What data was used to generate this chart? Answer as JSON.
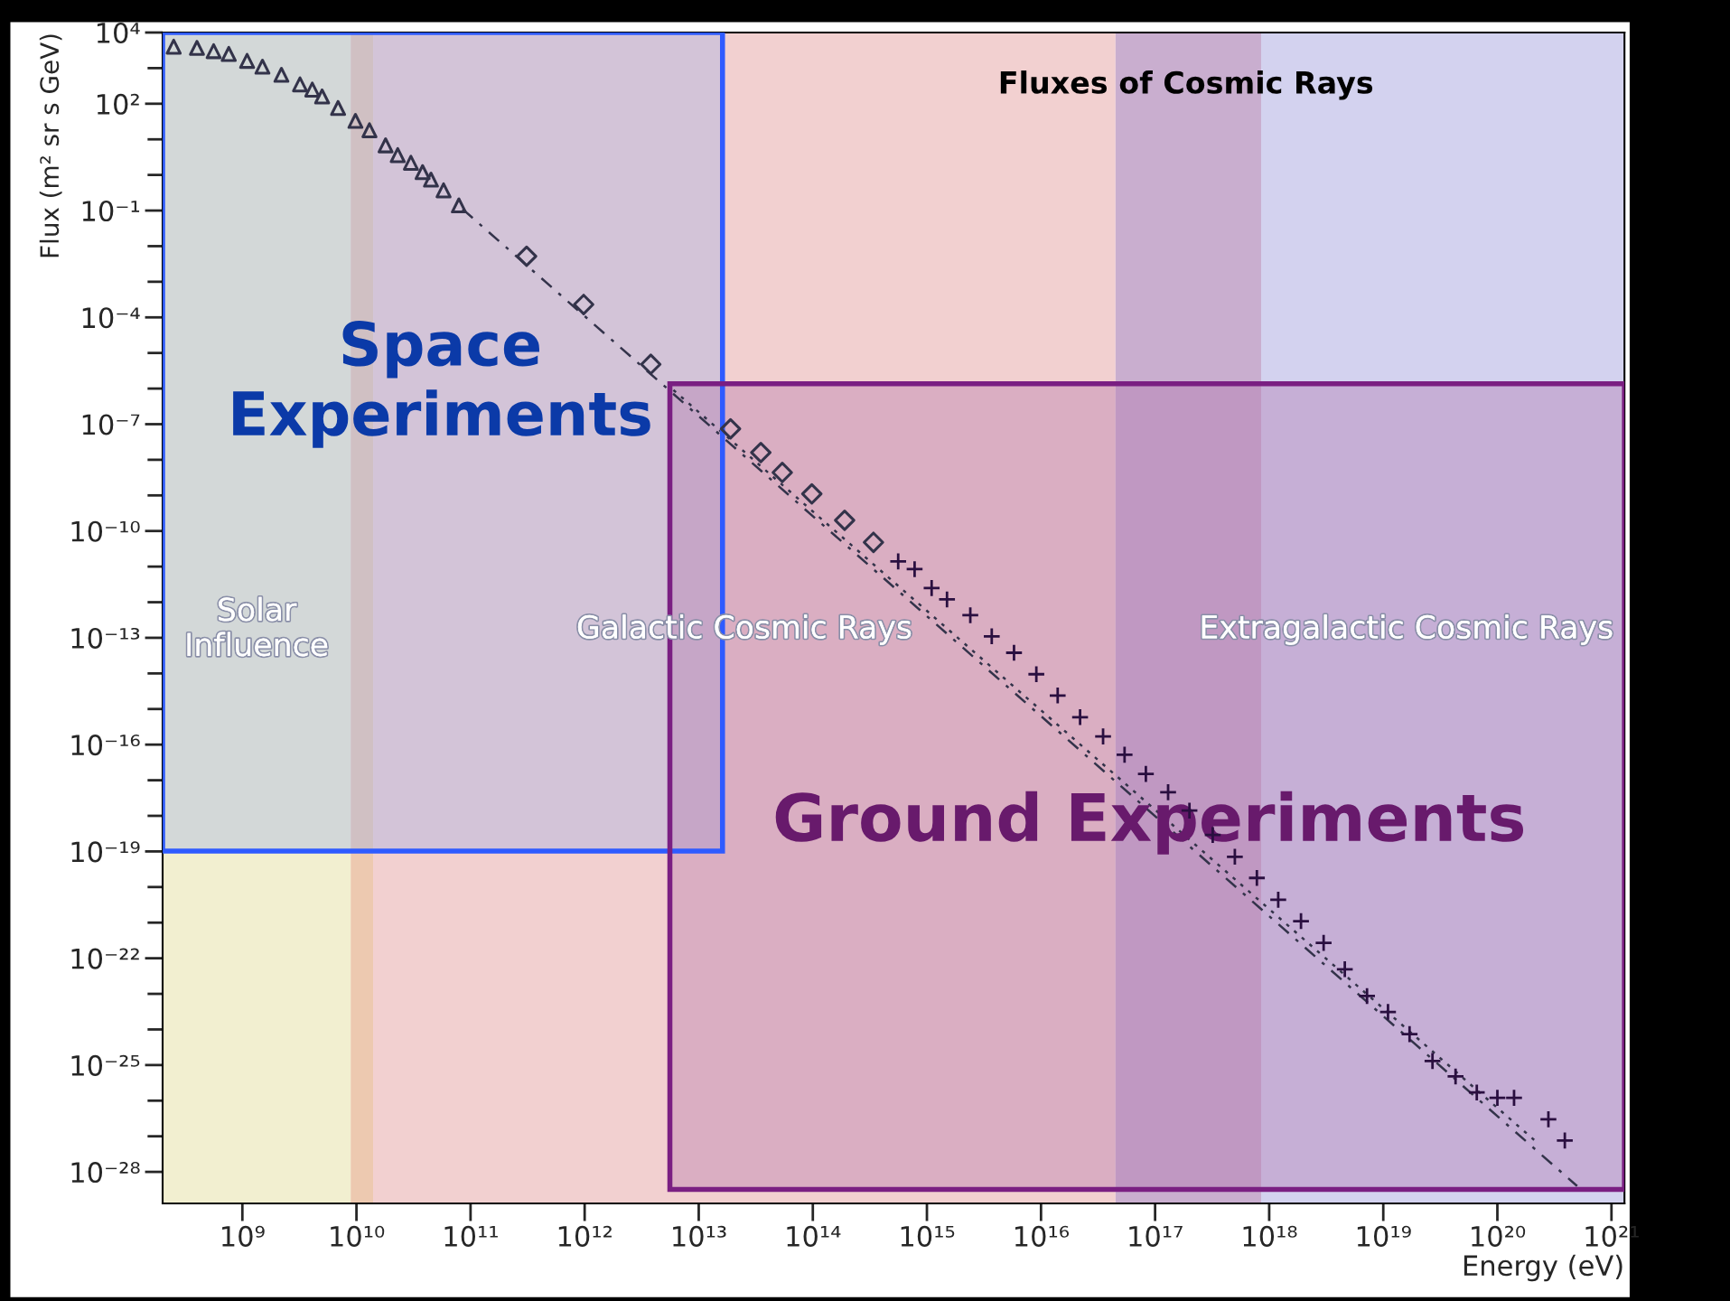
{
  "chart_data": {
    "type": "scatter",
    "xlabel": "Energy (eV)",
    "ylabel": "Flux (m² sr s GeV)",
    "log": "xy",
    "grid": false,
    "xlim": [
      200000000.0,
      1.3e+21
    ],
    "ylim": [
      1.3e-29,
      10000.0
    ],
    "xticks": [
      {
        "value": 1000000000.0,
        "label": "10⁹"
      },
      {
        "value": 10000000000.0,
        "label": "10¹⁰"
      },
      {
        "value": 100000000000.0,
        "label": "10¹¹"
      },
      {
        "value": 1000000000000.0,
        "label": "10¹²"
      },
      {
        "value": 10000000000000.0,
        "label": "10¹³"
      },
      {
        "value": 100000000000000.0,
        "label": "10¹⁴"
      },
      {
        "value": 1000000000000000.0,
        "label": "10¹⁵"
      },
      {
        "value": 1e+16,
        "label": "10¹⁶"
      },
      {
        "value": 1e+17,
        "label": "10¹⁷"
      },
      {
        "value": 1e+18,
        "label": "10¹⁸"
      },
      {
        "value": 1e+19,
        "label": "10¹⁹"
      },
      {
        "value": 1e+20,
        "label": "10²⁰"
      },
      {
        "value": 1e+21,
        "label": "10²¹"
      }
    ],
    "yticks": [
      {
        "value": 10000.0,
        "label": "10⁴"
      },
      {
        "value": 100.0,
        "label": "10²"
      },
      {
        "value": 0.1,
        "label": "10⁻¹"
      },
      {
        "value": 0.0001,
        "label": "10⁻⁴"
      },
      {
        "value": 1e-07,
        "label": "10⁻⁷"
      },
      {
        "value": 1e-10,
        "label": "10⁻¹⁰"
      },
      {
        "value": 1e-13,
        "label": "10⁻¹³"
      },
      {
        "value": 1e-16,
        "label": "10⁻¹⁶"
      },
      {
        "value": 1e-19,
        "label": "10⁻¹⁹"
      },
      {
        "value": 1e-22,
        "label": "10⁻²²"
      },
      {
        "value": 1e-25,
        "label": "10⁻²⁵"
      },
      {
        "value": 1e-28,
        "label": "10⁻²⁸"
      }
    ],
    "bands": [
      {
        "axis": "x",
        "from": 200000000.0,
        "to": 8900000000.0,
        "label": "Solar\nInfluence",
        "color": "#f2efd0"
      },
      {
        "axis": "x",
        "from": 8900000000.0,
        "to": 14000000000.0,
        "color": "#edc9b0"
      },
      {
        "axis": "x",
        "from": 14000000000.0,
        "to": 4.5e+16,
        "label": "Galactic Cosmic Rays",
        "color": "#f2d0d0"
      },
      {
        "axis": "x",
        "from": 4.5e+16,
        "to": 8.5e+17,
        "color": "#c9aecf"
      },
      {
        "axis": "x",
        "from": 8.5e+17,
        "to": 1.3e+21,
        "label": "Extragalactic Cosmic Rays",
        "color": "#d3d2ef"
      }
    ],
    "annotations": [
      "Fluxes of Cosmic Rays",
      "Space\nExperiments",
      "Ground Experiments"
    ],
    "series": [
      {
        "marker": "triangle",
        "color": "#33334a",
        "x": [
          250000000.0,
          400000000.0,
          560000000.0,
          760000000.0,
          1100000000.0,
          1500000000.0,
          2200000000.0,
          3200000000.0,
          4100000000.0,
          5000000000.0,
          6900000000.0,
          9800000000.0,
          13000000000.0,
          18000000000.0,
          23000000000.0,
          30000000000.0,
          38000000000.0,
          45000000000.0,
          58000000000.0,
          79000000000.0
        ],
        "values": [
          4000,
          3700,
          3000,
          2500,
          1600,
          1100,
          650,
          350,
          250,
          160,
          76,
          33,
          18,
          6.8,
          3.6,
          2.2,
          1.2,
          0.74,
          0.37,
          0.14
        ]
      },
      {
        "marker": "diamond",
        "color": "#33334a",
        "x": [
          310000000000.0,
          980000000000.0,
          3800000000000.0,
          19000000000000.0,
          35000000000000.0,
          54000000000000.0,
          98000000000000.0,
          190000000000000.0,
          340000000000000.0
        ],
        "values": [
          0.0052,
          0.00023,
          4.8e-06,
          7.4e-08,
          1.6e-08,
          4.4e-09,
          1.1e-09,
          2e-10,
          4.8e-11
        ]
      },
      {
        "marker": "cross",
        "color": "#2a0f40",
        "x": [
          560000000000000.0,
          780000000000000.0,
          1100000000000000.0,
          1500000000000000.0,
          2400000000000000.0,
          3700000000000000.0,
          5800000000000000.0,
          9100000000000000.0,
          1.4e+16,
          2.2e+16,
          3.5e+16,
          5.4e+16,
          8.3e+16,
          1.3e+17,
          2e+17,
          3.2e+17,
          5e+17,
          7.8e+17,
          1.2e+18,
          1.9e+18,
          3e+18,
          4.6e+18,
          7.2e+18,
          1.1e+19,
          1.7e+19,
          2.7e+19,
          4.3e+19,
          6.6e+19,
          1e+20,
          1.4e+20,
          2.8e+20,
          3.9e+20
        ],
        "values": [
          1.4e-11,
          8.5e-12,
          2.5e-12,
          1.2e-12,
          4.3e-13,
          1.1e-13,
          3.8e-14,
          9.5e-15,
          2.4e-15,
          5.9e-16,
          1.7e-16,
          5.2e-17,
          1.5e-17,
          4.6e-18,
          1.4e-18,
          2.9e-19,
          7.1e-20,
          1.8e-20,
          4.4e-21,
          1.1e-21,
          2.7e-22,
          4.9e-23,
          8.7e-24,
          3.1e-24,
          7.4e-25,
          1.3e-25,
          4.8e-26,
          1.7e-26,
          1.2e-26,
          1.2e-26,
          3e-27,
          7.6e-28
        ]
      },
      {
        "type": "line",
        "line_style": "dashed",
        "color": "#33334a",
        "x": [
          85000000000.0,
          5e+20
        ],
        "values": [
          0.11,
          4e-29
        ]
      },
      {
        "type": "line",
        "line_style": "dotted",
        "color": "#33334a",
        "x": [
          6000000000000.0,
          2.1e+20
        ],
        "values": [
          9.1e-07,
          7.9e-28
        ]
      }
    ]
  }
}
